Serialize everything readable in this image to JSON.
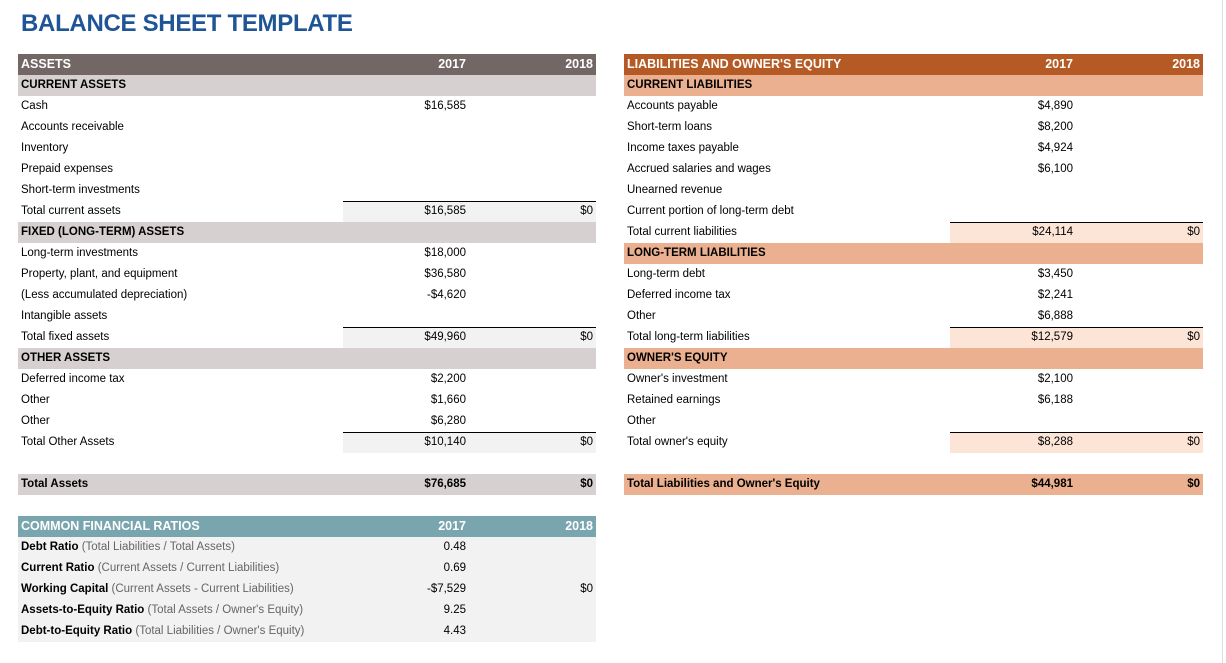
{
  "title": "BALANCE SHEET TEMPLATE",
  "colors": {
    "title": "#1f5496",
    "assets_header": "#736765",
    "assets_section": "#d6d0d0",
    "assets_total": "#f2f2f2",
    "liab_header": "#b55a25",
    "liab_section": "#ebb08f",
    "liab_total": "#fce4d6",
    "ratios_header": "#78a5ae",
    "ratios_body": "#f2f2f2"
  },
  "assets": {
    "header": {
      "label": "ASSETS",
      "y1": "2017",
      "y2": "2018"
    },
    "rows": [
      {
        "type": "sec",
        "label": "CURRENT ASSETS"
      },
      {
        "label": "Cash",
        "v1": "$16,585"
      },
      {
        "label": "Accounts receivable"
      },
      {
        "label": "Inventory"
      },
      {
        "label": "Prepaid expenses"
      },
      {
        "label": "Short-term investments"
      },
      {
        "type": "tot",
        "label": "Total current assets",
        "v1": "$16,585",
        "v2": "$0"
      },
      {
        "type": "sec",
        "label": "FIXED (LONG-TERM) ASSETS"
      },
      {
        "label": "Long-term investments",
        "v1": "$18,000"
      },
      {
        "label": "Property, plant, and equipment",
        "v1": "$36,580"
      },
      {
        "label": "(Less accumulated depreciation)",
        "v1": "-$4,620"
      },
      {
        "label": "Intangible assets"
      },
      {
        "type": "tot",
        "label": "Total fixed assets",
        "v1": "$49,960",
        "v2": "$0"
      },
      {
        "type": "sec",
        "label": "OTHER ASSETS"
      },
      {
        "label": "Deferred income tax",
        "v1": "$2,200"
      },
      {
        "label": "Other",
        "v1": "$1,660"
      },
      {
        "label": "Other",
        "v1": "$6,280"
      },
      {
        "type": "tot",
        "label": "Total Other Assets",
        "v1": "$10,140",
        "v2": "$0"
      }
    ],
    "grand_total": {
      "label": "Total Assets",
      "v1": "$76,685",
      "v2": "$0"
    }
  },
  "liabilities": {
    "header": {
      "label": "LIABILITIES AND OWNER'S EQUITY",
      "y1": "2017",
      "y2": "2018"
    },
    "rows": [
      {
        "type": "sec",
        "label": "CURRENT LIABILITIES"
      },
      {
        "label": "Accounts payable",
        "v1": "$4,890"
      },
      {
        "label": "Short-term loans",
        "v1": "$8,200"
      },
      {
        "label": "Income taxes payable",
        "v1": "$4,924"
      },
      {
        "label": "Accrued salaries and wages",
        "v1": "$6,100"
      },
      {
        "label": "Unearned revenue"
      },
      {
        "label": "Current portion of long-term debt"
      },
      {
        "type": "tot",
        "label": "Total current liabilities",
        "v1": "$24,114",
        "v2": "$0"
      },
      {
        "type": "sec",
        "label": "LONG-TERM LIABILITIES"
      },
      {
        "label": "Long-term debt",
        "v1": "$3,450"
      },
      {
        "label": "Deferred income tax",
        "v1": "$2,241"
      },
      {
        "label": "Other",
        "v1": "$6,888"
      },
      {
        "type": "tot",
        "label": "Total long-term liabilities",
        "v1": "$12,579",
        "v2": "$0"
      },
      {
        "type": "sec",
        "label": "OWNER'S EQUITY"
      },
      {
        "label": "Owner's investment",
        "v1": "$2,100"
      },
      {
        "label": "Retained earnings",
        "v1": "$6,188"
      },
      {
        "label": "Other"
      },
      {
        "type": "tot",
        "label": "Total owner's equity",
        "v1": "$8,288",
        "v2": "$0"
      }
    ],
    "grand_total": {
      "label": "Total Liabilities and Owner's Equity",
      "v1": "$44,981",
      "v2": "$0"
    }
  },
  "ratios": {
    "header": {
      "label": "COMMON FINANCIAL RATIOS",
      "y1": "2017",
      "y2": "2018"
    },
    "rows": [
      {
        "label": "Debt Ratio",
        "note": "(Total Liabilities / Total Assets)",
        "v1": "0.48"
      },
      {
        "label": "Current Ratio",
        "note": "(Current Assets / Current Liabilities)",
        "v1": "0.69"
      },
      {
        "label": "Working Capital",
        "note": "(Current Assets - Current Liabilities)",
        "v1": "-$7,529",
        "v2": "$0"
      },
      {
        "label": "Assets-to-Equity Ratio",
        "note": "(Total Assets / Owner's Equity)",
        "v1": "9.25"
      },
      {
        "label": "Debt-to-Equity Ratio",
        "note": "(Total Liabilities / Owner's Equity)",
        "v1": "4.43"
      }
    ]
  }
}
